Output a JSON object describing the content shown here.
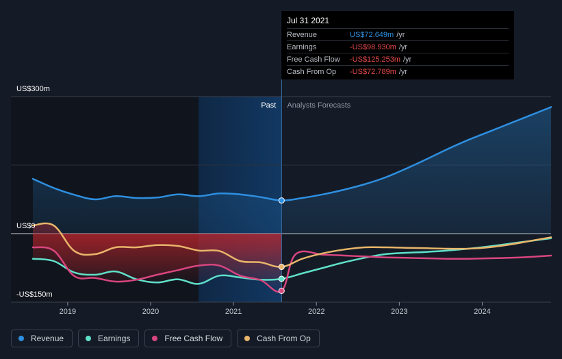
{
  "chart_data": {
    "type": "line",
    "x_ticks": [
      "2019",
      "2020",
      "2021",
      "2022",
      "2023",
      "2024"
    ],
    "y_ticks": [
      {
        "label": "US$300m",
        "value": 300
      },
      {
        "label": "US$0",
        "value": 0
      },
      {
        "label": "-US$150m",
        "value": -150
      }
    ],
    "ylim": [
      -150,
      300
    ],
    "xlim": [
      2018.58,
      2024.83
    ],
    "past_label": "Past",
    "forecast_label": "Analysts Forecasts",
    "highlight_date": 2021.58,
    "past_shade_start": 2020.58,
    "series": [
      {
        "name": "Revenue",
        "key": "revenue",
        "color": "#2e8fe0",
        "points": [
          [
            2018.58,
            120
          ],
          [
            2018.83,
            100
          ],
          [
            2019.08,
            85
          ],
          [
            2019.33,
            75
          ],
          [
            2019.58,
            82
          ],
          [
            2019.83,
            78
          ],
          [
            2020.08,
            79
          ],
          [
            2020.33,
            86
          ],
          [
            2020.58,
            82
          ],
          [
            2020.83,
            88
          ],
          [
            2021.08,
            86
          ],
          [
            2021.33,
            80
          ],
          [
            2021.58,
            72.649
          ],
          [
            2021.83,
            78
          ],
          [
            2022.08,
            86
          ],
          [
            2022.33,
            96
          ],
          [
            2022.58,
            108
          ],
          [
            2022.83,
            123
          ],
          [
            2023.08,
            142
          ],
          [
            2023.33,
            163
          ],
          [
            2023.58,
            185
          ],
          [
            2023.83,
            205
          ],
          [
            2024.08,
            223
          ],
          [
            2024.33,
            241
          ],
          [
            2024.58,
            259
          ],
          [
            2024.83,
            277
          ]
        ]
      },
      {
        "name": "Earnings",
        "key": "earnings",
        "color": "#5fe0c9",
        "points": [
          [
            2018.58,
            -55
          ],
          [
            2018.83,
            -60
          ],
          [
            2019.08,
            -85
          ],
          [
            2019.33,
            -90
          ],
          [
            2019.58,
            -83
          ],
          [
            2019.83,
            -100
          ],
          [
            2020.08,
            -107
          ],
          [
            2020.33,
            -100
          ],
          [
            2020.58,
            -110
          ],
          [
            2020.83,
            -92
          ],
          [
            2021.08,
            -96
          ],
          [
            2021.33,
            -101
          ],
          [
            2021.58,
            -98.93
          ],
          [
            2021.83,
            -87
          ],
          [
            2022.08,
            -75
          ],
          [
            2022.33,
            -63
          ],
          [
            2022.58,
            -53
          ],
          [
            2022.83,
            -45
          ],
          [
            2023.08,
            -42
          ],
          [
            2023.33,
            -40
          ],
          [
            2023.58,
            -37
          ],
          [
            2023.83,
            -33
          ],
          [
            2024.08,
            -28
          ],
          [
            2024.33,
            -22
          ],
          [
            2024.58,
            -16
          ],
          [
            2024.83,
            -10
          ]
        ]
      },
      {
        "name": "Free Cash Flow",
        "key": "fcf",
        "color": "#d8457f",
        "points": [
          [
            2018.58,
            -30
          ],
          [
            2018.83,
            -37
          ],
          [
            2019.08,
            -93
          ],
          [
            2019.33,
            -97
          ],
          [
            2019.58,
            -105
          ],
          [
            2019.83,
            -101
          ],
          [
            2020.08,
            -90
          ],
          [
            2020.33,
            -80
          ],
          [
            2020.58,
            -70
          ],
          [
            2020.83,
            -70
          ],
          [
            2021.08,
            -92
          ],
          [
            2021.33,
            -102
          ],
          [
            2021.58,
            -125.253
          ],
          [
            2021.75,
            -45
          ],
          [
            2022.08,
            -46
          ],
          [
            2022.33,
            -48
          ],
          [
            2022.58,
            -50
          ],
          [
            2022.83,
            -52
          ],
          [
            2023.08,
            -53
          ],
          [
            2023.33,
            -54
          ],
          [
            2023.58,
            -55
          ],
          [
            2023.83,
            -55
          ],
          [
            2024.08,
            -54
          ],
          [
            2024.33,
            -53
          ],
          [
            2024.58,
            -51
          ],
          [
            2024.83,
            -48
          ]
        ]
      },
      {
        "name": "Cash From Op",
        "key": "cfo",
        "color": "#e8b56a",
        "points": [
          [
            2018.58,
            18
          ],
          [
            2018.83,
            18
          ],
          [
            2019.08,
            -38
          ],
          [
            2019.33,
            -45
          ],
          [
            2019.58,
            -30
          ],
          [
            2019.83,
            -30
          ],
          [
            2020.08,
            -25
          ],
          [
            2020.33,
            -27
          ],
          [
            2020.58,
            -37
          ],
          [
            2020.83,
            -38
          ],
          [
            2021.08,
            -60
          ],
          [
            2021.33,
            -63
          ],
          [
            2021.58,
            -72.789
          ],
          [
            2021.83,
            -55
          ],
          [
            2022.08,
            -43
          ],
          [
            2022.33,
            -35
          ],
          [
            2022.58,
            -30
          ],
          [
            2022.83,
            -30
          ],
          [
            2023.08,
            -31
          ],
          [
            2023.33,
            -32
          ],
          [
            2023.58,
            -33
          ],
          [
            2023.83,
            -33
          ],
          [
            2024.08,
            -30
          ],
          [
            2024.33,
            -24
          ],
          [
            2024.58,
            -16
          ],
          [
            2024.83,
            -8
          ]
        ]
      }
    ]
  },
  "tooltip": {
    "date": "Jul 31 2021",
    "unit": "/yr",
    "rows": [
      {
        "label": "Revenue",
        "value": "US$72.649m",
        "color": "#2e8fe0"
      },
      {
        "label": "Earnings",
        "value": "-US$98.930m",
        "color": "#e84a4a"
      },
      {
        "label": "Free Cash Flow",
        "value": "-US$125.253m",
        "color": "#e84a4a"
      },
      {
        "label": "Cash From Op",
        "value": "-US$72.789m",
        "color": "#e84a4a"
      }
    ]
  },
  "legend": [
    {
      "label": "Revenue",
      "color": "#2e8fe0"
    },
    {
      "label": "Earnings",
      "color": "#5fe0c9"
    },
    {
      "label": "Free Cash Flow",
      "color": "#d8457f"
    },
    {
      "label": "Cash From Op",
      "color": "#e8b56a"
    }
  ]
}
